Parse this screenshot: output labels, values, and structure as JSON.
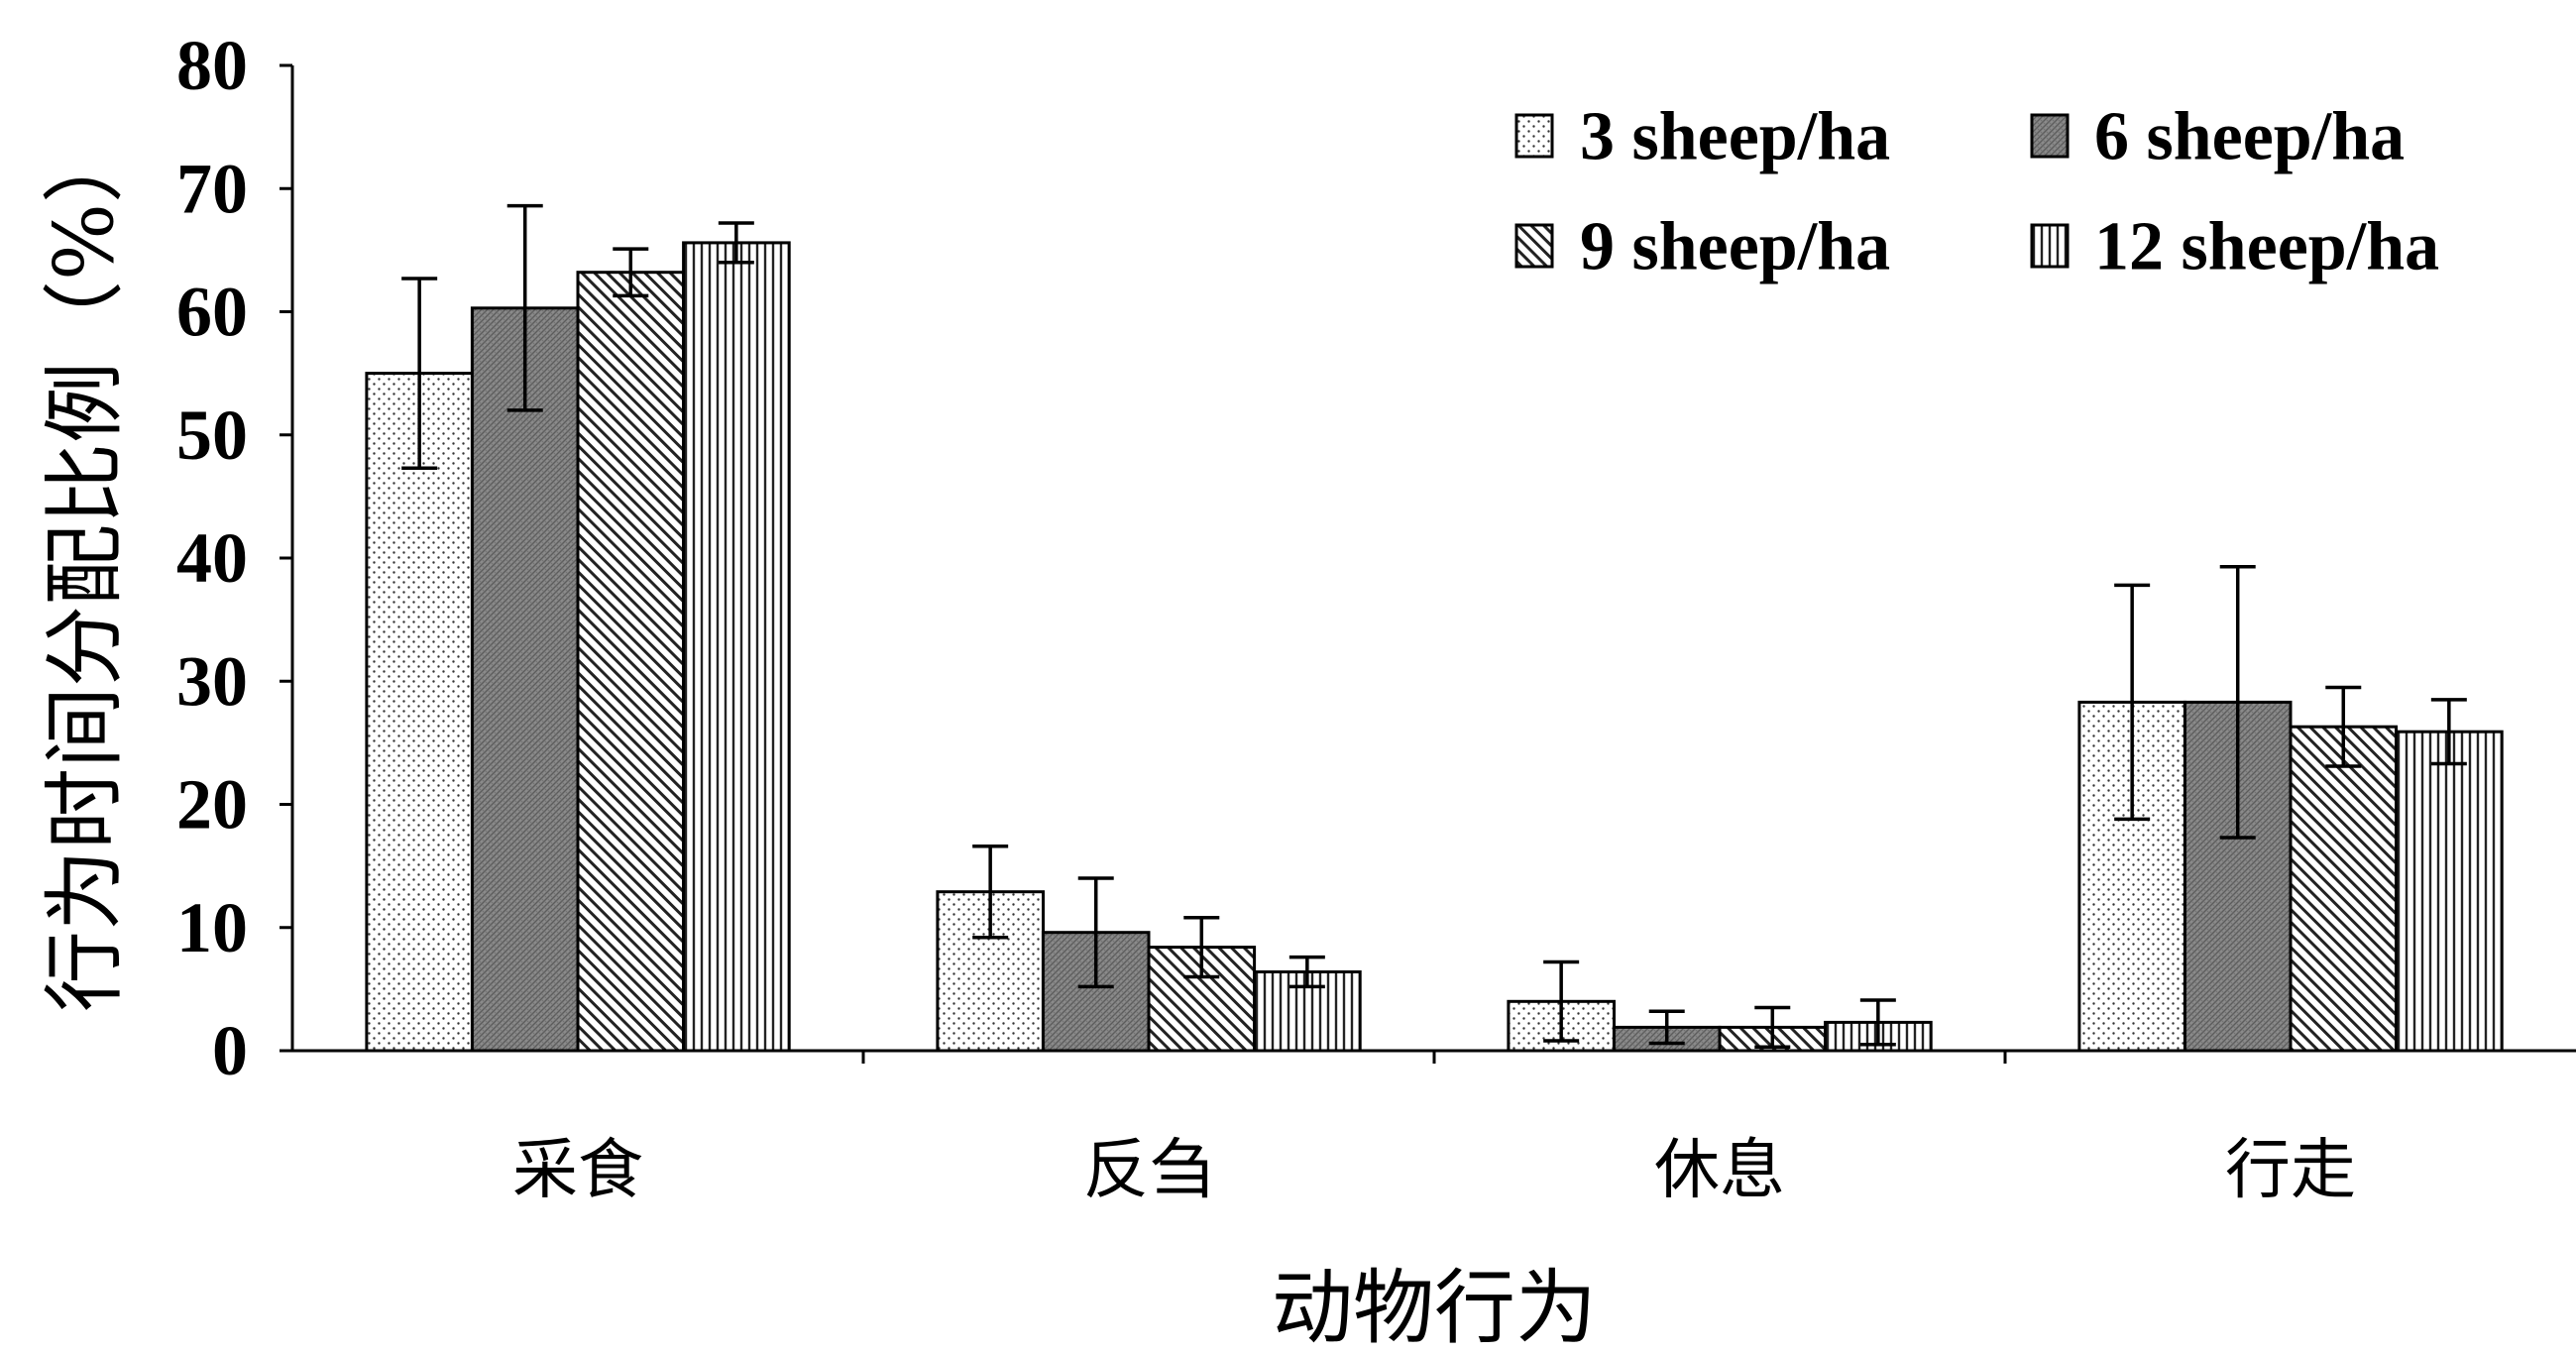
{
  "chart_data": {
    "type": "bar",
    "categories": [
      "采食",
      "反刍",
      "休息",
      "行走"
    ],
    "series": [
      {
        "name": "3 sheep/ha",
        "pattern": "dotted",
        "values": [
          55.0,
          12.9,
          4.0,
          28.3
        ],
        "errors": [
          7.7,
          3.7,
          3.2,
          9.5
        ]
      },
      {
        "name": "6 sheep/ha",
        "pattern": "dark-gray",
        "values": [
          60.3,
          9.6,
          1.9,
          28.3
        ],
        "errors": [
          8.3,
          4.4,
          1.3,
          11.0
        ]
      },
      {
        "name": "9 sheep/ha",
        "pattern": "diagonal-hatch",
        "values": [
          63.2,
          8.4,
          1.9,
          26.3
        ],
        "errors": [
          1.9,
          2.4,
          1.6,
          3.2
        ]
      },
      {
        "name": "12 sheep/ha",
        "pattern": "vertical-lines",
        "values": [
          65.6,
          6.4,
          2.3,
          25.9
        ],
        "errors": [
          1.6,
          1.2,
          1.8,
          2.6
        ]
      }
    ],
    "xlabel": "动物行为",
    "ylabel": "行为时间分配比例（%）",
    "ylim": [
      0,
      80
    ],
    "yticks": [
      0,
      10,
      20,
      30,
      40,
      50,
      60,
      70,
      80
    ],
    "grid": false,
    "legend": {
      "position": "top-right",
      "columns": 2
    }
  }
}
